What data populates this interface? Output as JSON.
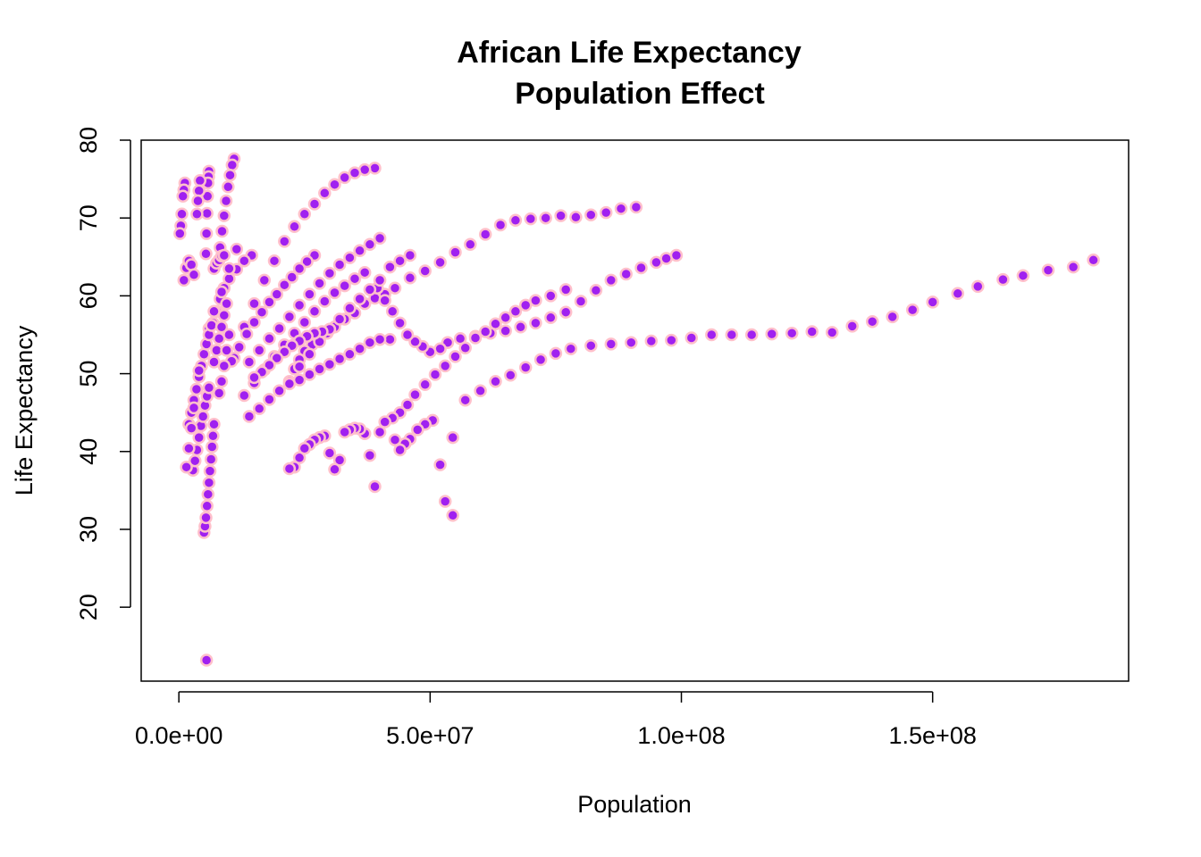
{
  "chart_data": {
    "type": "scatter",
    "title": "African Life Expectancy",
    "subtitle": "Population Effect",
    "xlabel": "Population",
    "ylabel": "Life Expectancy",
    "xlim": [
      -7500000,
      189000000
    ],
    "ylim": [
      10.5,
      80
    ],
    "x_ticks": [
      0,
      50000000,
      100000000,
      150000000
    ],
    "x_tick_labels": [
      "0.0e+00",
      "5.0e+07",
      "1.0e+08",
      "1.5e+08"
    ],
    "y_ticks": [
      20,
      30,
      40,
      50,
      60,
      70,
      80
    ],
    "y_tick_labels": [
      "20",
      "30",
      "40",
      "50",
      "60",
      "70",
      "80"
    ],
    "marker_fill": "#a020f0",
    "marker_edge": "#ffc0cb",
    "grid": false,
    "legend": "none",
    "series": [
      {
        "x": [
          91000000,
          88000000,
          85000000,
          82000000,
          79000000,
          76000000,
          73000000,
          70000000,
          67000000,
          64000000,
          61000000,
          58000000,
          55000000,
          52000000,
          49000000,
          46000000,
          43000000,
          41000000,
          39000000,
          37000000,
          35000000,
          33000000,
          31000000,
          29500000,
          28000000,
          26500000,
          25000000,
          24000000,
          23000000,
          22000000
        ],
        "y": [
          71.4,
          71.2,
          70.7,
          70.4,
          70.1,
          70.3,
          70.0,
          69.9,
          69.7,
          69.1,
          67.9,
          66.6,
          65.6,
          64.3,
          63.2,
          62.3,
          61.0,
          60.2,
          59.7,
          59.0,
          57.8,
          57.0,
          56.0,
          55.2,
          54.4,
          53.7,
          52.9,
          51.8,
          50.6,
          49.0
        ]
      },
      {
        "x": [
          99000000,
          97000000,
          95000000,
          92000000,
          89000000,
          86000000,
          83000000,
          80000000,
          77000000,
          74000000,
          71000000,
          68000000,
          65000000,
          62000000,
          59000000,
          56000000,
          53500000,
          52000000,
          50000000,
          48500000,
          47000000,
          45500000,
          44000000,
          42500000,
          41000000,
          39500000
        ],
        "y": [
          65.2,
          64.8,
          64.3,
          63.6,
          62.8,
          62.0,
          60.7,
          59.3,
          57.9,
          57.2,
          56.5,
          56.0,
          55.5,
          55.2,
          54.8,
          54.5,
          54.0,
          53.2,
          52.8,
          53.5,
          54.1,
          55.0,
          56.5,
          58.0,
          59.4,
          61.0
        ]
      },
      {
        "x": [
          182000000,
          178000000,
          173000000,
          168000000,
          164000000,
          159000000,
          155000000,
          150000000,
          146000000,
          142000000,
          138000000,
          134000000,
          130000000,
          126000000,
          122000000,
          118000000,
          114000000,
          110000000,
          106000000,
          102000000,
          98000000,
          94000000,
          90000000,
          86000000,
          82000000,
          78000000,
          75000000,
          72000000,
          69000000,
          66000000,
          63000000,
          60000000,
          57000000
        ],
        "y": [
          64.6,
          63.7,
          63.3,
          62.6,
          62.1,
          61.2,
          60.3,
          59.2,
          58.2,
          57.3,
          56.7,
          56.1,
          55.3,
          55.4,
          55.2,
          55.1,
          55.0,
          55.0,
          55.0,
          54.6,
          54.3,
          54.2,
          54.0,
          53.8,
          53.6,
          53.2,
          52.6,
          51.8,
          50.8,
          49.8,
          49.0,
          47.8,
          46.6
        ]
      },
      {
        "x": [
          77000000,
          74000000,
          71000000,
          69000000,
          67000000,
          65000000,
          63000000,
          61000000,
          59000000,
          57000000,
          55000000,
          53000000,
          51000000,
          49000000,
          47000000,
          45500000,
          44000000,
          42500000,
          41000000,
          40000000
        ],
        "y": [
          60.8,
          60.0,
          59.4,
          58.8,
          58.0,
          57.2,
          56.4,
          55.4,
          54.6,
          53.3,
          52.2,
          51.0,
          49.9,
          48.6,
          47.3,
          46.0,
          45.0,
          44.3,
          43.8,
          42.5
        ]
      },
      {
        "x": [
          54500000,
          52000000,
          50500000,
          49000000,
          47500000,
          46000000,
          45000000,
          44000000,
          43000000,
          39000000,
          38000000,
          37000000,
          36000000,
          35000000,
          34000000,
          33000000,
          32000000,
          31000000,
          30000000,
          29000000,
          28000000,
          27000000,
          26000000,
          25000000,
          24000000,
          23000000,
          22000000
        ],
        "y": [
          41.8,
          38.3,
          44.0,
          43.5,
          42.8,
          41.6,
          41.0,
          40.2,
          41.5,
          35.5,
          39.5,
          42.3,
          42.9,
          43.0,
          42.8,
          42.5,
          38.9,
          37.7,
          39.8,
          42.0,
          41.8,
          41.5,
          40.9,
          40.4,
          39.2,
          38.0,
          37.8
        ]
      },
      {
        "x": [
          53000000,
          54500000
        ],
        "y": [
          33.6,
          31.8
        ]
      },
      {
        "x": [
          39000000,
          37000000,
          35000000,
          33000000,
          31000000,
          29000000,
          27000000,
          25000000,
          23000000,
          21000000,
          19000000,
          17000000,
          15000000,
          13000000,
          11000000
        ],
        "y": [
          76.4,
          76.2,
          75.8,
          75.2,
          74.3,
          73.2,
          71.8,
          70.5,
          68.9,
          67.0,
          64.5,
          62.0,
          59.0,
          56.0,
          52.0
        ]
      },
      {
        "x": [
          40000000,
          38000000,
          36000000,
          34000000,
          32000000,
          30000000,
          28000000,
          26000000,
          24000000,
          22000000,
          20000000,
          18000000,
          16000000,
          14000000
        ],
        "y": [
          67.4,
          66.6,
          65.8,
          64.9,
          64.0,
          62.9,
          61.6,
          60.2,
          58.8,
          57.3,
          55.8,
          54.5,
          53.0,
          51.5
        ]
      },
      {
        "x": [
          46000000,
          44000000,
          42000000,
          40000000,
          38000000,
          36000000,
          34000000,
          32000000,
          30000000,
          28000000,
          26000000,
          24000000
        ],
        "y": [
          65.2,
          64.5,
          63.7,
          62.0,
          60.8,
          59.6,
          58.4,
          57.0,
          55.7,
          54.1,
          52.5,
          50.9
        ]
      },
      {
        "x": [
          37000000,
          35000000,
          33000000,
          31000000,
          29000000,
          27000000,
          25000000,
          23000000,
          21000000,
          19000000,
          17000000,
          15000000,
          13000000
        ],
        "y": [
          63.0,
          62.2,
          61.3,
          60.4,
          59.3,
          58.0,
          56.6,
          55.2,
          53.7,
          52.2,
          50.5,
          48.8,
          47.2
        ]
      },
      {
        "x": [
          42000000,
          40000000,
          38000000,
          36000000,
          34000000,
          32000000,
          30000000,
          28000000,
          26000000,
          24000000,
          22000000,
          20000000,
          18000000,
          16000000,
          14000000
        ],
        "y": [
          54.4,
          54.4,
          54.0,
          53.2,
          52.5,
          51.9,
          51.2,
          50.6,
          49.9,
          49.2,
          48.7,
          47.8,
          46.7,
          45.5,
          44.5
        ]
      },
      {
        "x": [
          27000000,
          25500000,
          24000000,
          22500000,
          21000000,
          19500000,
          18000000,
          16500000,
          15000000,
          13500000,
          12000000,
          10500000
        ],
        "y": [
          65.2,
          64.4,
          63.5,
          62.4,
          61.4,
          60.2,
          59.2,
          57.9,
          56.6,
          55.1,
          53.4,
          51.6
        ]
      },
      {
        "x": [
          30000000,
          28500000,
          27000000,
          25500000,
          24000000,
          22500000,
          21000000,
          19500000,
          18000000,
          16500000,
          15000000
        ],
        "y": [
          55.7,
          55.4,
          55.2,
          54.8,
          54.2,
          53.6,
          52.8,
          52.0,
          51.1,
          50.2,
          49.5
        ]
      },
      {
        "x": [
          14500000,
          13000000,
          11500000,
          10000000,
          9000000,
          8200000,
          7500000,
          6800000
        ],
        "y": [
          65.2,
          64.5,
          63.4,
          62.2,
          61.0,
          59.6,
          58.0,
          56.5
        ]
      },
      {
        "x": [
          11000000,
          10600000,
          10200000,
          9800000,
          9400000,
          9000000,
          8600000,
          8200000
        ],
        "y": [
          77.6,
          76.8,
          75.5,
          74.0,
          72.2,
          70.3,
          68.3,
          66.2
        ]
      },
      {
        "x": [
          6000000,
          5900000,
          5800000,
          5700000,
          5600000,
          5500000,
          5400000
        ],
        "y": [
          76.0,
          75.3,
          74.5,
          72.8,
          70.6,
          68.0,
          65.4
        ]
      },
      {
        "x": [
          4200000,
          4000000,
          3800000,
          3600000
        ],
        "y": [
          74.8,
          73.5,
          72.2,
          70.5
        ]
      },
      {
        "x": [
          1200000,
          1000000,
          800000,
          600000,
          400000,
          200000
        ],
        "y": [
          74.5,
          73.6,
          72.8,
          70.5,
          69.0,
          68.0
        ]
      },
      {
        "x": [
          11500000,
          10000000,
          8500000,
          7000000,
          6000000
        ],
        "y": [
          66.0,
          63.5,
          60.5,
          58.0,
          55.8
        ]
      },
      {
        "x": [
          5000000,
          5200000,
          5400000,
          5600000,
          5800000,
          6000000,
          6200000,
          6400000,
          6600000,
          6800000,
          7000000
        ],
        "y": [
          29.6,
          30.4,
          31.5,
          33.0,
          34.5,
          36.0,
          37.5,
          39.0,
          40.6,
          42.0,
          43.5
        ]
      },
      {
        "x": [
          5500000
        ],
        "y": [
          13.2
        ]
      },
      {
        "x": [
          2800000,
          3200000,
          3600000,
          4000000,
          4400000,
          4800000,
          5200000,
          5600000,
          6000000
        ],
        "y": [
          37.6,
          38.8,
          40.2,
          41.8,
          43.3,
          44.5,
          45.9,
          47.1,
          48.2
        ]
      },
      {
        "x": [
          2000000,
          2500000,
          3000000,
          3500000,
          4000000,
          4500000,
          5000000,
          5500000,
          6000000,
          6500000
        ],
        "y": [
          43.5,
          45.0,
          46.6,
          48.0,
          49.6,
          51.0,
          52.5,
          53.8,
          55.0,
          56.2
        ]
      },
      {
        "x": [
          9500000,
          9000000,
          8500000,
          8000000,
          7500000,
          7000000
        ],
        "y": [
          59.0,
          57.5,
          56.0,
          54.5,
          53.0,
          51.5
        ]
      },
      {
        "x": [
          1500000,
          2000000,
          2500000,
          3000000,
          3500000,
          4000000
        ],
        "y": [
          38.0,
          40.4,
          43.0,
          45.6,
          48.0,
          50.4
        ]
      },
      {
        "x": [
          1000000,
          1500000,
          2000000,
          2500000,
          3000000
        ],
        "y": [
          62.0,
          63.6,
          64.5,
          64.0,
          62.7
        ]
      },
      {
        "x": [
          7000000,
          7500000,
          8000000,
          8500000,
          9000000
        ],
        "y": [
          63.5,
          64.2,
          64.6,
          65.1,
          65.2
        ]
      },
      {
        "x": [
          8000000,
          8500000,
          9000000,
          9500000,
          10000000
        ],
        "y": [
          47.5,
          49.0,
          51.0,
          53.0,
          55.0
        ]
      }
    ]
  }
}
